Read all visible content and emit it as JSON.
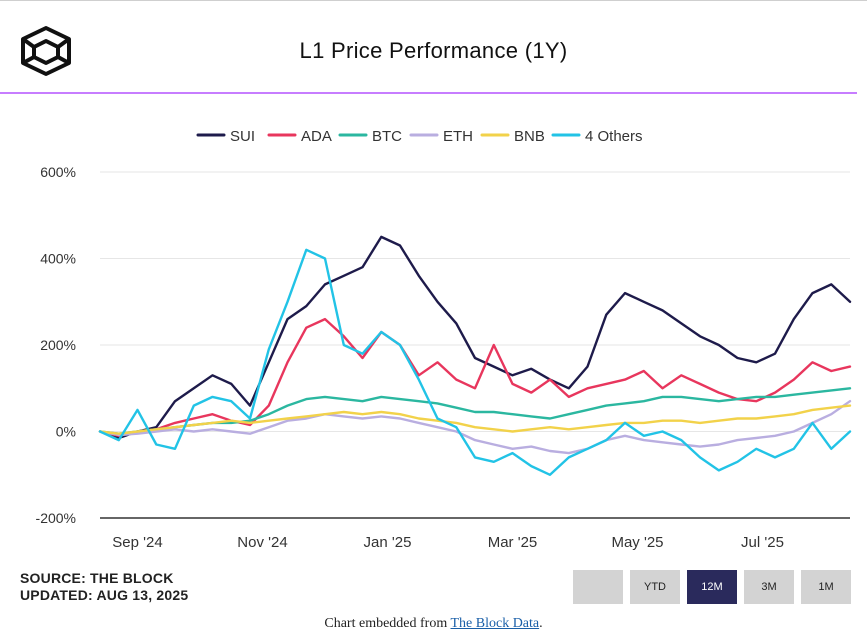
{
  "header": {
    "title": "L1 Price Performance (1Y)",
    "accent_color": "#c77dff"
  },
  "chart_data": {
    "type": "line",
    "title": "L1 Price Performance (1Y)",
    "xlabel": "",
    "ylabel": "",
    "ylim": [
      -200,
      600
    ],
    "xlim": [
      0,
      12
    ],
    "yticks": [
      -200,
      0,
      200,
      400,
      600
    ],
    "ytick_labels": [
      "-200%",
      "0%",
      "200%",
      "400%",
      "600%"
    ],
    "xticks": [
      0.6,
      2.6,
      4.6,
      6.6,
      8.6,
      10.6
    ],
    "xtick_labels": [
      "Sep '24",
      "Nov '24",
      "Jan '25",
      "Mar '25",
      "May '25",
      "Jul '25"
    ],
    "grid": true,
    "legend_position": "top",
    "series": [
      {
        "name": "SUI",
        "color": "#1e1b4b",
        "x": [
          0,
          0.3,
          0.6,
          0.9,
          1.2,
          1.5,
          1.8,
          2.1,
          2.4,
          2.7,
          3.0,
          3.3,
          3.6,
          3.9,
          4.2,
          4.5,
          4.8,
          5.1,
          5.4,
          5.7,
          6.0,
          6.3,
          6.6,
          6.9,
          7.2,
          7.5,
          7.8,
          8.1,
          8.4,
          8.7,
          9.0,
          9.3,
          9.6,
          9.9,
          10.2,
          10.5,
          10.8,
          11.1,
          11.4,
          11.7,
          12.0
        ],
        "values": [
          0,
          -15,
          0,
          10,
          70,
          100,
          130,
          110,
          60,
          160,
          260,
          290,
          340,
          360,
          380,
          450,
          430,
          360,
          300,
          250,
          170,
          150,
          130,
          145,
          120,
          100,
          150,
          270,
          320,
          300,
          280,
          250,
          220,
          200,
          170,
          160,
          180,
          260,
          320,
          340,
          300
        ]
      },
      {
        "name": "ADA",
        "color": "#e8365d",
        "x": [
          0,
          0.3,
          0.6,
          0.9,
          1.2,
          1.5,
          1.8,
          2.1,
          2.4,
          2.7,
          3.0,
          3.3,
          3.6,
          3.9,
          4.2,
          4.5,
          4.8,
          5.1,
          5.4,
          5.7,
          6.0,
          6.3,
          6.6,
          6.9,
          7.2,
          7.5,
          7.8,
          8.1,
          8.4,
          8.7,
          9.0,
          9.3,
          9.6,
          9.9,
          10.2,
          10.5,
          10.8,
          11.1,
          11.4,
          11.7,
          12.0
        ],
        "values": [
          0,
          -10,
          0,
          5,
          20,
          30,
          40,
          25,
          15,
          60,
          160,
          240,
          260,
          220,
          170,
          230,
          200,
          130,
          160,
          120,
          100,
          200,
          110,
          90,
          120,
          80,
          100,
          110,
          120,
          140,
          100,
          130,
          110,
          90,
          75,
          70,
          90,
          120,
          160,
          140,
          150
        ]
      },
      {
        "name": "BTC",
        "color": "#2bb7a0",
        "x": [
          0,
          0.3,
          0.6,
          0.9,
          1.2,
          1.5,
          1.8,
          2.1,
          2.4,
          2.7,
          3.0,
          3.3,
          3.6,
          3.9,
          4.2,
          4.5,
          4.8,
          5.1,
          5.4,
          5.7,
          6.0,
          6.3,
          6.6,
          6.9,
          7.2,
          7.5,
          7.8,
          8.1,
          8.4,
          8.7,
          9.0,
          9.3,
          9.6,
          9.9,
          10.2,
          10.5,
          10.8,
          11.1,
          11.4,
          11.7,
          12.0
        ],
        "values": [
          0,
          -5,
          0,
          5,
          10,
          15,
          20,
          20,
          25,
          40,
          60,
          75,
          80,
          75,
          70,
          80,
          75,
          70,
          65,
          55,
          45,
          45,
          40,
          35,
          30,
          40,
          50,
          60,
          65,
          70,
          80,
          80,
          75,
          70,
          75,
          80,
          80,
          85,
          90,
          95,
          100
        ]
      },
      {
        "name": "ETH",
        "color": "#b9aee0",
        "x": [
          0,
          0.3,
          0.6,
          0.9,
          1.2,
          1.5,
          1.8,
          2.1,
          2.4,
          2.7,
          3.0,
          3.3,
          3.6,
          3.9,
          4.2,
          4.5,
          4.8,
          5.1,
          5.4,
          5.7,
          6.0,
          6.3,
          6.6,
          6.9,
          7.2,
          7.5,
          7.8,
          8.1,
          8.4,
          8.7,
          9.0,
          9.3,
          9.6,
          9.9,
          10.2,
          10.5,
          10.8,
          11.1,
          11.4,
          11.7,
          12.0
        ],
        "values": [
          0,
          -8,
          -5,
          0,
          5,
          0,
          5,
          0,
          -5,
          10,
          25,
          30,
          40,
          35,
          30,
          35,
          30,
          20,
          10,
          0,
          -20,
          -30,
          -40,
          -35,
          -45,
          -50,
          -40,
          -20,
          -10,
          -20,
          -25,
          -30,
          -35,
          -30,
          -20,
          -15,
          -10,
          0,
          20,
          40,
          70
        ]
      },
      {
        "name": "BNB",
        "color": "#f2d24a",
        "x": [
          0,
          0.3,
          0.6,
          0.9,
          1.2,
          1.5,
          1.8,
          2.1,
          2.4,
          2.7,
          3.0,
          3.3,
          3.6,
          3.9,
          4.2,
          4.5,
          4.8,
          5.1,
          5.4,
          5.7,
          6.0,
          6.3,
          6.6,
          6.9,
          7.2,
          7.5,
          7.8,
          8.1,
          8.4,
          8.7,
          9.0,
          9.3,
          9.6,
          9.9,
          10.2,
          10.5,
          10.8,
          11.1,
          11.4,
          11.7,
          12.0
        ],
        "values": [
          0,
          -5,
          0,
          5,
          10,
          15,
          20,
          25,
          20,
          25,
          30,
          35,
          40,
          45,
          40,
          45,
          40,
          30,
          25,
          20,
          10,
          5,
          0,
          5,
          10,
          5,
          10,
          15,
          20,
          20,
          25,
          25,
          20,
          25,
          30,
          30,
          35,
          40,
          50,
          55,
          60
        ]
      },
      {
        "name": "4 Others",
        "color": "#22c3e6",
        "x": [
          0,
          0.3,
          0.6,
          0.9,
          1.2,
          1.5,
          1.8,
          2.1,
          2.4,
          2.7,
          3.0,
          3.3,
          3.6,
          3.9,
          4.2,
          4.5,
          4.8,
          5.1,
          5.4,
          5.7,
          6.0,
          6.3,
          6.6,
          6.9,
          7.2,
          7.5,
          7.8,
          8.1,
          8.4,
          8.7,
          9.0,
          9.3,
          9.6,
          9.9,
          10.2,
          10.5,
          10.8,
          11.1,
          11.4,
          11.7,
          12.0
        ],
        "values": [
          0,
          -20,
          50,
          -30,
          -40,
          60,
          80,
          70,
          30,
          190,
          300,
          420,
          400,
          200,
          180,
          230,
          200,
          120,
          30,
          10,
          -60,
          -70,
          -50,
          -80,
          -100,
          -60,
          -40,
          -20,
          20,
          -10,
          0,
          -20,
          -60,
          -90,
          -70,
          -40,
          -60,
          -40,
          20,
          -40,
          0
        ]
      }
    ]
  },
  "source": {
    "line1": "SOURCE: THE BLOCK",
    "line2": "UPDATED: AUG 13, 2025"
  },
  "range_buttons": [
    {
      "label": "",
      "active": false
    },
    {
      "label": "YTD",
      "active": false
    },
    {
      "label": "12M",
      "active": true
    },
    {
      "label": "3M",
      "active": false
    },
    {
      "label": "1M",
      "active": false
    }
  ],
  "footer": {
    "prefix": "Chart embedded from ",
    "link_text": "The Block Data",
    "suffix": "."
  }
}
